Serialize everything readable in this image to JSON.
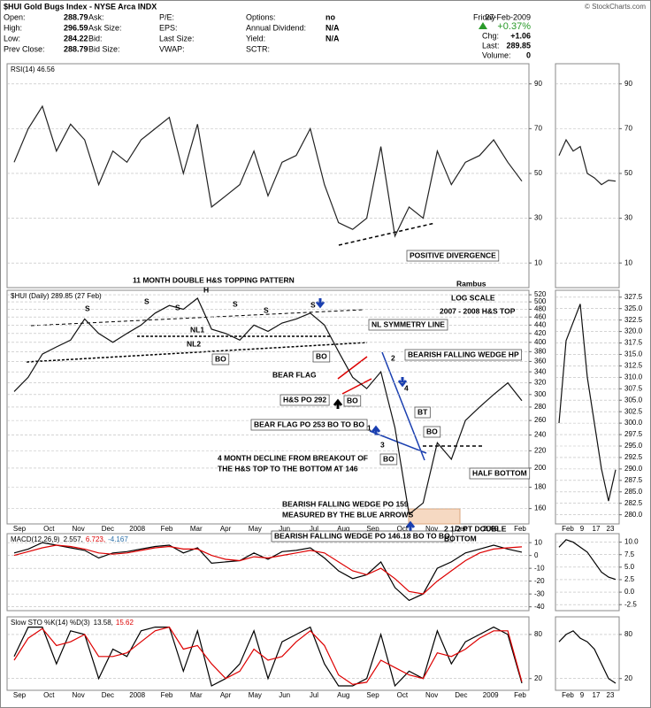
{
  "header": {
    "title": "$HUI Gold Bugs Index - NYSE Arca INDX",
    "copyright": "© StockCharts.com",
    "columns": [
      [
        {
          "label": "Open:",
          "value": 288.79
        },
        {
          "label": "High:",
          "value": 296.59
        },
        {
          "label": "Low:",
          "value": 284.22
        },
        {
          "label": "Prev Close:",
          "value": 288.79
        }
      ],
      [
        {
          "label": "Ask:"
        },
        {
          "label": "Ask Size:"
        },
        {
          "label": "Bid:"
        },
        {
          "label": "Bid Size:"
        }
      ],
      [
        {
          "label": "P/E:"
        },
        {
          "label": "EPS:"
        },
        {
          "label": "Last Size:"
        },
        {
          "label": "VWAP:"
        }
      ],
      [
        {
          "label": "Options:",
          "value": "no"
        },
        {
          "label": "Annual Dividend:",
          "value": "N/A"
        },
        {
          "label": "Yield:",
          "value": "N/A"
        },
        {
          "label": "SCTR:"
        }
      ]
    ],
    "quote": {
      "day": "Friday",
      "date": "27-Feb-2009",
      "change_pct": "+0.37%",
      "rows": [
        {
          "label": "Chg:",
          "value": "+1.06"
        },
        {
          "label": "Last:",
          "value": 289.85
        },
        {
          "label": "Volume:",
          "value": 0
        }
      ]
    }
  },
  "chart_data": [
    {
      "type": "line",
      "title": "RSI(14) 46.56",
      "ylim": [
        -1,
        99
      ],
      "yticks": [
        90,
        70,
        50,
        30,
        10
      ],
      "grid": true,
      "series": [
        {
          "name": "RSI(14)",
          "color": "#222222",
          "values": [
            55,
            70,
            80,
            60,
            72,
            65,
            45,
            60,
            55,
            65,
            70,
            75,
            50,
            72,
            35,
            40,
            45,
            60,
            40,
            55,
            58,
            70,
            45,
            28,
            25,
            30,
            62,
            22,
            35,
            30,
            60,
            45,
            55,
            58,
            65,
            55,
            46.56
          ]
        }
      ]
    },
    {
      "type": "line",
      "title": "$HUI (Daily) 289.85 (27 Feb)",
      "log_scale": true,
      "ylim": [
        147,
        533
      ],
      "grid": true,
      "yticks": [
        160,
        180,
        200,
        220,
        240,
        260,
        280,
        300,
        320,
        340,
        360,
        380,
        400,
        420,
        440,
        460,
        480,
        500,
        520
      ],
      "x_axis_labels": [
        "Sep",
        "Oct",
        "Nov",
        "Dec",
        "2008",
        "Feb",
        "Mar",
        "Apr",
        "May",
        "Jun",
        "Jul",
        "Aug",
        "Sep",
        "Oct",
        "Nov",
        "Dec",
        "2009",
        "Feb"
      ],
      "series": [
        {
          "name": "$HUI",
          "color": "#111111",
          "values": [
            305,
            330,
            375,
            390,
            405,
            455,
            420,
            400,
            420,
            440,
            470,
            490,
            480,
            510,
            430,
            420,
            405,
            440,
            425,
            445,
            455,
            470,
            440,
            380,
            330,
            310,
            340,
            250,
            155,
            165,
            230,
            210,
            260,
            280,
            300,
            320,
            289.85
          ]
        }
      ],
      "annotations": [
        {
          "text": "11 MONTH DOUBLE  H&S TOPPING PATTERN"
        },
        {
          "text": "LOG SCALE"
        },
        {
          "text": "2007 - 2008 H&S TOP"
        },
        {
          "text": "Rambus"
        },
        {
          "text": "POSITIVE DIVERGENCE"
        },
        {
          "text": "H"
        },
        {
          "text": "S"
        },
        {
          "text": "S"
        },
        {
          "text": "S"
        },
        {
          "text": "S"
        },
        {
          "text": "S"
        },
        {
          "text": "S"
        },
        {
          "text": "NL1"
        },
        {
          "text": "NL2"
        },
        {
          "text": "NL SYMMETRY LINE"
        },
        {
          "text": "BO",
          "color": "#1a3fb0"
        },
        {
          "text": "BO",
          "color": "#1a3fb0"
        },
        {
          "text": "BEAR FLAG",
          "color": "#dd0000"
        },
        {
          "text": "H&S PO 292"
        },
        {
          "text": "BO",
          "color": "#1a3fb0"
        },
        {
          "text": "BEAR FLAG PO 253 BO TO BO",
          "color": "#dd0000"
        },
        {
          "text": "BEARISH FALLING WEDGE HP",
          "color": "#1a3fb0"
        },
        {
          "text": "4 MONTH DECLINE FROM BREAKOUT OF"
        },
        {
          "text": "THE H&S TOP TO THE BOTTOM AT 146"
        },
        {
          "text": "BO",
          "color": "#1a3fb0"
        },
        {
          "text": "BT",
          "color": "#1a3fb0"
        },
        {
          "text": "BO",
          "color": "#1a3fb0"
        },
        {
          "text": "HALF BOTTOM"
        },
        {
          "text": "BEARISH FALLING WEDGE PO 159",
          "color": "#1a3fb0"
        },
        {
          "text": "MEASURED BY THE BLUE ARROWS",
          "color": "#1a3fb0"
        },
        {
          "text": "BEARISH FALLING WEDGE PO 146.18 BO TO BO",
          "color": "#1a3fb0"
        },
        {
          "text": "2 1/2 PT DOUBLE"
        },
        {
          "text": "BOTTOM"
        },
        {
          "text": "1",
          "color": "#dd0000"
        },
        {
          "text": "2",
          "color": "#dd0000"
        },
        {
          "text": "3",
          "color": "#dd0000"
        },
        {
          "text": "4",
          "color": "#dd0000"
        }
      ]
    },
    {
      "type": "line",
      "title": "MACD(12,26,9)",
      "legend_values": [
        "2.557,",
        "6.723,",
        "-4.167"
      ],
      "legend_colors": [
        "#000000",
        "#dd0000",
        "#2a6fa8"
      ],
      "ylim": [
        -43,
        17
      ],
      "yticks": [
        10,
        0,
        -10,
        -20,
        -30,
        -40
      ],
      "grid": true,
      "series": [
        {
          "name": "MACD",
          "color": "#000000",
          "values": [
            2,
            5,
            10,
            8,
            6,
            4,
            -2,
            2,
            3,
            5,
            7,
            8,
            2,
            6,
            -6,
            -5,
            -4,
            2,
            -3,
            3,
            4,
            6,
            -2,
            -12,
            -18,
            -15,
            -5,
            -25,
            -35,
            -30,
            -10,
            -5,
            2,
            5,
            8,
            5,
            2.557
          ]
        },
        {
          "name": "Signal",
          "color": "#dd0000",
          "values": [
            0,
            3,
            6,
            8,
            7,
            5,
            2,
            1,
            2,
            4,
            6,
            7,
            5,
            5,
            0,
            -3,
            -4,
            -1,
            -2,
            0,
            2,
            4,
            2,
            -5,
            -12,
            -15,
            -10,
            -18,
            -28,
            -30,
            -20,
            -12,
            -4,
            2,
            5,
            6,
            6.723
          ]
        }
      ]
    },
    {
      "type": "line",
      "title": "Slow STO %K(14) %D(3)",
      "legend_values": [
        "13.58,",
        "15.62"
      ],
      "legend_colors": [
        "#000000",
        "#dd0000"
      ],
      "ylim": [
        4,
        104
      ],
      "yticks": [
        80,
        20
      ],
      "grid": true,
      "x_axis_labels": [
        "Sep",
        "Oct",
        "Nov",
        "Dec",
        "2008",
        "Feb",
        "Mar",
        "Apr",
        "May",
        "Jun",
        "Jul",
        "Aug",
        "Sep",
        "Oct",
        "Nov",
        "Dec",
        "2009",
        "Feb"
      ],
      "series": [
        {
          "name": "%K",
          "color": "#000000",
          "values": [
            50,
            90,
            90,
            40,
            85,
            80,
            20,
            60,
            50,
            85,
            90,
            90,
            30,
            85,
            10,
            20,
            40,
            85,
            20,
            70,
            80,
            90,
            40,
            10,
            10,
            20,
            80,
            10,
            30,
            20,
            85,
            40,
            70,
            80,
            90,
            80,
            13.58
          ]
        },
        {
          "name": "%D",
          "color": "#dd0000",
          "values": [
            45,
            75,
            88,
            65,
            70,
            80,
            50,
            50,
            55,
            70,
            85,
            90,
            60,
            65,
            40,
            20,
            30,
            60,
            45,
            50,
            70,
            85,
            65,
            25,
            12,
            15,
            45,
            35,
            25,
            20,
            55,
            50,
            60,
            75,
            85,
            85,
            15.62
          ]
        }
      ]
    },
    {
      "type": "line",
      "ylim": [
        -1,
        99
      ],
      "yticks": [
        90,
        70,
        50,
        30,
        10
      ],
      "grid": true,
      "series": [
        {
          "color": "#222222",
          "values": [
            58,
            65,
            60,
            62,
            50,
            48,
            45,
            47,
            46.56
          ]
        }
      ]
    },
    {
      "type": "line",
      "ylim": [
        278,
        329
      ],
      "grid": true,
      "yticks": [
        327.5,
        {
          "value": 325,
          "label": "325.0"
        },
        322.5,
        {
          "value": 320,
          "label": "320.0"
        },
        317.5,
        {
          "value": 315,
          "label": "315.0"
        },
        312.5,
        {
          "value": 310,
          "label": "310.0"
        },
        307.5,
        {
          "value": 305,
          "label": "305.0"
        },
        302.5,
        {
          "value": 300,
          "label": "300.0"
        },
        297.5,
        {
          "value": 295,
          "label": "295.0"
        },
        292.5,
        {
          "value": 290,
          "label": "290.0"
        },
        287.5,
        {
          "value": 285,
          "label": "285.0"
        },
        282.5,
        {
          "value": 280,
          "label": "280.0"
        }
      ],
      "x_axis_labels": [
        "Feb",
        "9",
        "17",
        "23"
      ],
      "series": [
        {
          "color": "#111111",
          "values": [
            300,
            318,
            322,
            326,
            310,
            300,
            290,
            283,
            289.85
          ]
        }
      ]
    },
    {
      "type": "line",
      "ylim": [
        -3.7,
        11.7
      ],
      "grid": true,
      "yticks": [
        {
          "value": 10,
          "label": "10.0"
        },
        7.5,
        {
          "value": 5,
          "label": "5.0"
        },
        2.5,
        {
          "value": 0,
          "label": "0.0"
        },
        -2.5
      ],
      "series": [
        {
          "color": "#000000",
          "values": [
            9,
            10.5,
            10,
            9,
            8,
            6,
            4,
            3,
            2.557
          ]
        }
      ]
    },
    {
      "type": "line",
      "ylim": [
        4,
        104
      ],
      "yticks": [
        80,
        20
      ],
      "grid": true,
      "x_axis_labels": [
        "Feb",
        "9",
        "17",
        "23"
      ],
      "series": [
        {
          "color": "#000000",
          "values": [
            70,
            80,
            85,
            75,
            70,
            60,
            40,
            20,
            13.58
          ]
        }
      ]
    }
  ]
}
